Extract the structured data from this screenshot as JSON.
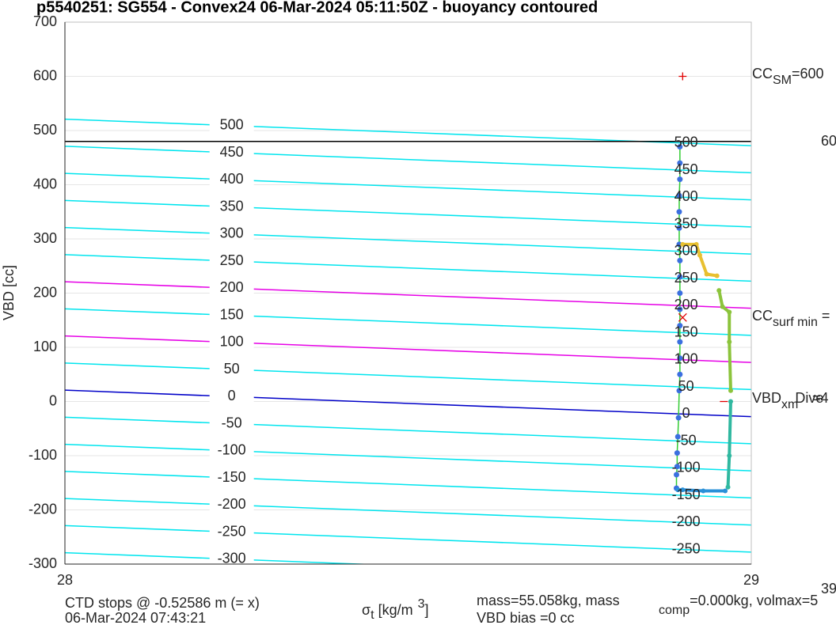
{
  "chart_data": {
    "type": "line",
    "title": "p5540251: SG554 - Convex24 06-Mar-2024 05:11:50Z - buoyancy contoured",
    "ylabel": "VBD [cc]",
    "xlabel": [
      "σ",
      "t",
      " [kg/m",
      "3",
      "]"
    ],
    "xlim": [
      28,
      29
    ],
    "xticks": [
      28,
      29
    ],
    "ylim": [
      -300,
      700
    ],
    "yticks": [
      -300,
      -200,
      -100,
      0,
      100,
      200,
      300,
      400,
      500,
      600,
      700
    ],
    "grid": true,
    "hline": {
      "value": 480,
      "color": "#000000"
    },
    "contours": [
      {
        "level": 500,
        "values": [
          521,
          472
        ],
        "color": "#00e5ee"
      },
      {
        "level": 450,
        "values": [
          471,
          422
        ],
        "color": "#00e5ee"
      },
      {
        "level": 400,
        "values": [
          421,
          372
        ],
        "color": "#00e5ee"
      },
      {
        "level": 350,
        "values": [
          371,
          322
        ],
        "color": "#00e5ee"
      },
      {
        "level": 300,
        "values": [
          321,
          272
        ],
        "color": "#00e5ee"
      },
      {
        "level": 250,
        "values": [
          271,
          222
        ],
        "color": "#00e5ee"
      },
      {
        "level": 200,
        "values": [
          221,
          172
        ],
        "color": "#e600e6"
      },
      {
        "level": 150,
        "values": [
          171,
          122
        ],
        "color": "#00e5ee"
      },
      {
        "level": 100,
        "values": [
          121,
          72
        ],
        "color": "#e600e6"
      },
      {
        "level": 50,
        "values": [
          71,
          22
        ],
        "color": "#00e5ee"
      },
      {
        "level": 0,
        "values": [
          21,
          -28
        ],
        "color": "#0000c8"
      },
      {
        "level": -50,
        "values": [
          -29,
          -78
        ],
        "color": "#00e5ee"
      },
      {
        "level": -100,
        "values": [
          -79,
          -128
        ],
        "color": "#00e5ee"
      },
      {
        "level": -150,
        "values": [
          -129,
          -178
        ],
        "color": "#00e5ee"
      },
      {
        "level": -200,
        "values": [
          -179,
          -228
        ],
        "color": "#00e5ee"
      },
      {
        "level": -250,
        "values": [
          -229,
          -278
        ],
        "color": "#00e5ee"
      },
      {
        "level": -300,
        "values": [
          -279,
          -328
        ],
        "color": "#00e5ee"
      }
    ],
    "series": [
      {
        "color": "#3b6fe0",
        "line_color": "#33cc33",
        "x": [
          28.896,
          28.896,
          28.896,
          28.895,
          28.895,
          28.895,
          28.895,
          28.896,
          28.896,
          28.896,
          28.896,
          28.896,
          28.896,
          28.896,
          28.896,
          28.895,
          28.894,
          28.893,
          28.892,
          28.892,
          28.891,
          28.891
        ],
        "values": [
          470,
          440,
          410,
          380,
          350,
          320,
          290,
          260,
          230,
          200,
          170,
          140,
          110,
          80,
          50,
          20,
          -30,
          -65,
          -95,
          -120,
          -135,
          -160
        ]
      },
      {
        "color": "#e8c030",
        "x": [
          28.9,
          28.92,
          28.925,
          28.935,
          28.95
        ],
        "values": [
          290,
          290,
          270,
          235,
          232
        ]
      },
      {
        "color": "#8cc43c",
        "x": [
          28.953,
          28.958,
          28.968,
          28.968,
          28.97
        ],
        "values": [
          205,
          175,
          165,
          110,
          20
        ]
      },
      {
        "color": "#30b8a0",
        "x": [
          28.97,
          28.968,
          28.966
        ],
        "values": [
          0,
          -100,
          -158
        ]
      },
      {
        "color": "#2a90d8",
        "x": [
          28.962,
          28.93,
          28.9,
          28.893
        ],
        "values": [
          -165,
          -165,
          -163,
          -163
        ]
      }
    ],
    "markers": [
      {
        "x": 28.9,
        "y": 600,
        "symbol": "+",
        "color": "#e00000"
      },
      {
        "x": 28.9,
        "y": 155,
        "symbol": "x",
        "color": "#e00000"
      },
      {
        "x": 28.96,
        "y": 0,
        "symbol": "-",
        "color": "#e00000"
      }
    ],
    "annotations": {
      "cc_sm": [
        "CC",
        "SM",
        "=600"
      ],
      "cc_surf": [
        "CC",
        "surf min",
        " ="
      ],
      "vbd": [
        "VBD",
        "xm",
        "Dive",
        "=4"
      ],
      "right_top": "60",
      "right_bottom": "39",
      "ctd": "CTD stops @ -0.52586 m (= x)",
      "date": "06-Mar-2024 07:43:21",
      "mass": [
        "mass=55.058kg, mass",
        "comp",
        "=0.000kg, volmax=5"
      ],
      "bias": "VBD bias =0 cc"
    }
  }
}
